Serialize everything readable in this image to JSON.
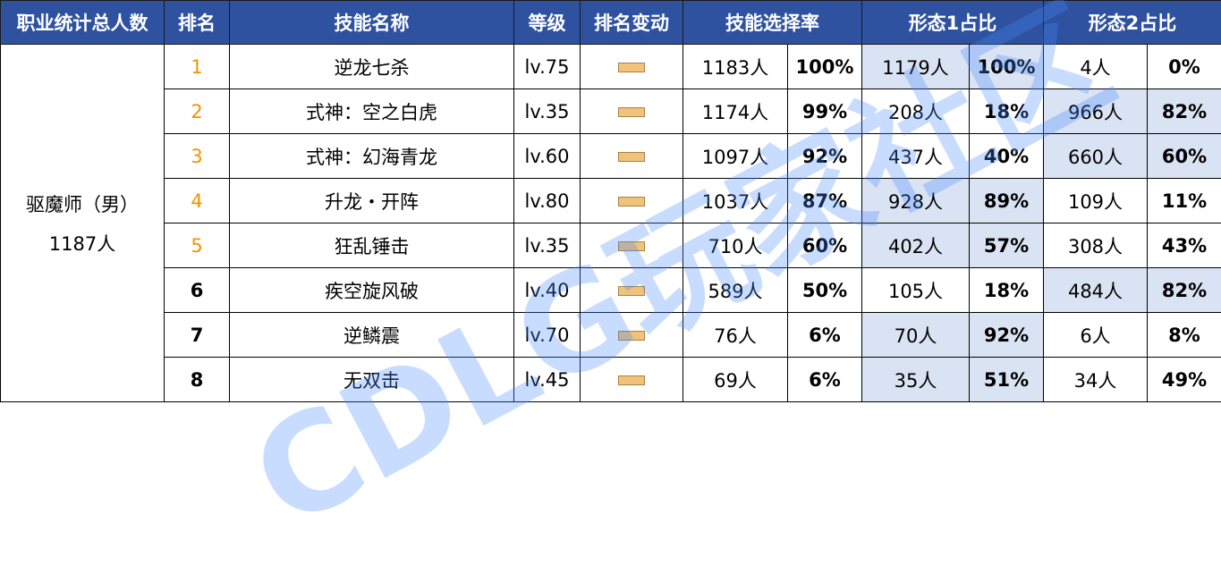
{
  "headers": [
    "职业统计总人数",
    "排名",
    "技能名称",
    "等级",
    "排名变动",
    "技能选择率",
    "形态1占比",
    "形态2占比"
  ],
  "job": {
    "name": "驱魔师（男）",
    "total": "1187人"
  },
  "colors": {
    "header": "#2f52a0",
    "highlight": "#dae3f3",
    "rank_top": "#f39200"
  },
  "watermark": "CDLG玩家社区",
  "rows": [
    {
      "rank": "1",
      "skill": "逆龙七杀",
      "level": "lv.75",
      "change": "unchanged",
      "sel": "1183人",
      "selp": "100%",
      "f1": "1179人",
      "f1p": "100%",
      "f2": "4人",
      "f2p": "0%",
      "hl": 1
    },
    {
      "rank": "2",
      "skill": "式神：空之白虎",
      "level": "lv.35",
      "change": "unchanged",
      "sel": "1174人",
      "selp": "99%",
      "f1": "208人",
      "f1p": "18%",
      "f2": "966人",
      "f2p": "82%",
      "hl": 2
    },
    {
      "rank": "3",
      "skill": "式神：幻海青龙",
      "level": "lv.60",
      "change": "unchanged",
      "sel": "1097人",
      "selp": "92%",
      "f1": "437人",
      "f1p": "40%",
      "f2": "660人",
      "f2p": "60%",
      "hl": 2
    },
    {
      "rank": "4",
      "skill": "升龙・开阵",
      "level": "lv.80",
      "change": "unchanged",
      "sel": "1037人",
      "selp": "87%",
      "f1": "928人",
      "f1p": "89%",
      "f2": "109人",
      "f2p": "11%",
      "hl": 1
    },
    {
      "rank": "5",
      "skill": "狂乱锤击",
      "level": "lv.35",
      "change": "unchanged",
      "sel": "710人",
      "selp": "60%",
      "f1": "402人",
      "f1p": "57%",
      "f2": "308人",
      "f2p": "43%",
      "hl": 1
    },
    {
      "rank": "6",
      "skill": "疾空旋风破",
      "level": "lv.40",
      "change": "unchanged",
      "sel": "589人",
      "selp": "50%",
      "f1": "105人",
      "f1p": "18%",
      "f2": "484人",
      "f2p": "82%",
      "hl": 2
    },
    {
      "rank": "7",
      "skill": "逆鳞震",
      "level": "lv.70",
      "change": "unchanged",
      "sel": "76人",
      "selp": "6%",
      "f1": "70人",
      "f1p": "92%",
      "f2": "6人",
      "f2p": "8%",
      "hl": 1
    },
    {
      "rank": "8",
      "skill": "无双击",
      "level": "lv.45",
      "change": "unchanged",
      "sel": "69人",
      "selp": "6%",
      "f1": "35人",
      "f1p": "51%",
      "f2": "34人",
      "f2p": "49%",
      "hl": 1
    }
  ]
}
